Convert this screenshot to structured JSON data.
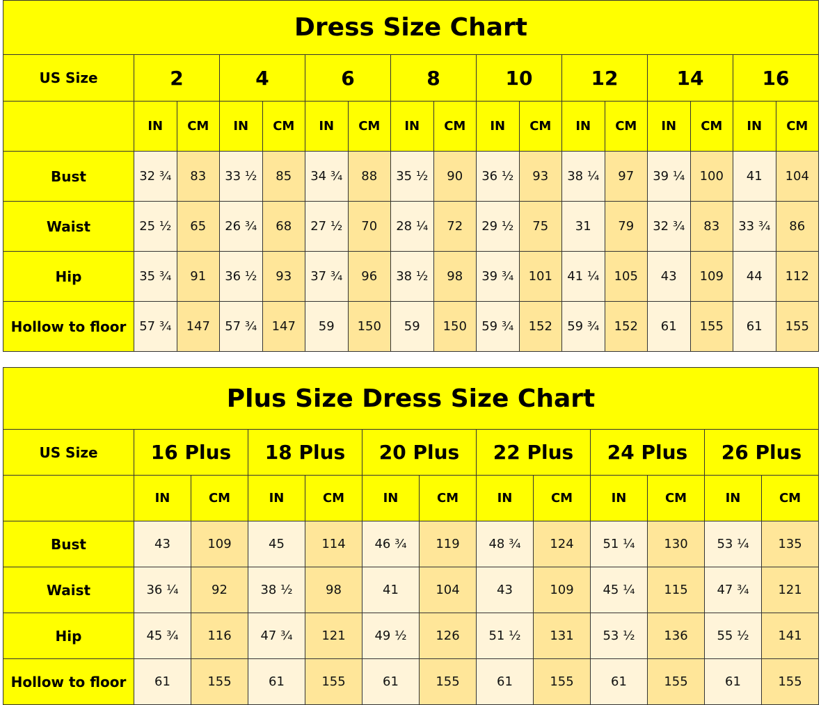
{
  "colors": {
    "header": "#ffff00",
    "in_cell": "#fff4d9",
    "cm_cell": "#ffe699"
  },
  "tables": [
    {
      "title": "Dress Size Chart",
      "size_label": "US Size",
      "sizes": [
        "2",
        "4",
        "6",
        "8",
        "10",
        "12",
        "14",
        "16"
      ],
      "unit_in": "IN",
      "unit_cm": "CM",
      "rows": [
        {
          "label": "Bust",
          "values": [
            "32 ¾",
            "83",
            "33 ½",
            "85",
            "34 ¾",
            "88",
            "35 ½",
            "90",
            "36 ½",
            "93",
            "38 ¼",
            "97",
            "39 ¼",
            "100",
            "41",
            "104"
          ]
        },
        {
          "label": "Waist",
          "values": [
            "25 ½",
            "65",
            "26 ¾",
            "68",
            "27 ½",
            "70",
            "28 ¼",
            "72",
            "29 ½",
            "75",
            "31",
            "79",
            "32 ¾",
            "83",
            "33 ¾",
            "86"
          ]
        },
        {
          "label": "Hip",
          "values": [
            "35 ¾",
            "91",
            "36 ½",
            "93",
            "37 ¾",
            "96",
            "38 ½",
            "98",
            "39 ¾",
            "101",
            "41 ¼",
            "105",
            "43",
            "109",
            "44",
            "112"
          ]
        },
        {
          "label": "Hollow to floor",
          "values": [
            "57 ¾",
            "147",
            "57 ¾",
            "147",
            "59",
            "150",
            "59",
            "150",
            "59 ¾",
            "152",
            "59 ¾",
            "152",
            "61",
            "155",
            "61",
            "155"
          ]
        }
      ]
    },
    {
      "title": "Plus Size Dress Size Chart",
      "size_label": "US Size",
      "sizes": [
        "16 Plus",
        "18  Plus",
        "20  Plus",
        "22  Plus",
        "24  Plus",
        "26  Plus"
      ],
      "unit_in": "IN",
      "unit_cm": "CM",
      "rows": [
        {
          "label": "Bust",
          "values": [
            "43",
            "109",
            "45",
            "114",
            "46 ¾",
            "119",
            "48 ¾",
            "124",
            "51 ¼",
            "130",
            "53 ¼",
            "135"
          ]
        },
        {
          "label": "Waist",
          "values": [
            "36 ¼",
            "92",
            "38 ½",
            "98",
            "41",
            "104",
            "43",
            "109",
            "45 ¼",
            "115",
            "47 ¾",
            "121"
          ]
        },
        {
          "label": "Hip",
          "values": [
            "45 ¾",
            "116",
            "47 ¾",
            "121",
            "49 ½",
            "126",
            "51 ½",
            "131",
            "53 ½",
            "136",
            "55 ½",
            "141"
          ]
        },
        {
          "label": "Hollow to floor",
          "values": [
            "61",
            "155",
            "61",
            "155",
            "61",
            "155",
            "61",
            "155",
            "61",
            "155",
            "61",
            "155"
          ]
        }
      ]
    }
  ]
}
